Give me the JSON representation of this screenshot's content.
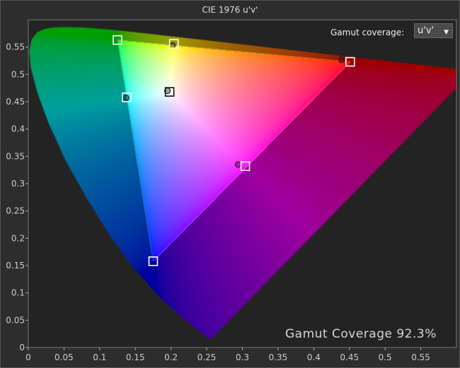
{
  "chart_data": {
    "type": "scatter",
    "title": "CIE 1976 u'v'",
    "xlabel": "",
    "ylabel": "",
    "xlim": [
      0,
      0.6
    ],
    "ylim": [
      0,
      0.6
    ],
    "x_ticks": [
      "0",
      "0.05",
      "0.1",
      "0.15",
      "0.2",
      "0.25",
      "0.3",
      "0.35",
      "0.4",
      "0.45",
      "0.5",
      "0.55"
    ],
    "y_ticks": [
      "0",
      "0.05",
      "0.1",
      "0.15",
      "0.2",
      "0.25",
      "0.3",
      "0.35",
      "0.4",
      "0.45",
      "0.5",
      "0.55"
    ],
    "grid": false,
    "target_gamut": [
      [
        0.451,
        0.523
      ],
      [
        0.125,
        0.563
      ],
      [
        0.175,
        0.158
      ]
    ],
    "targets": [
      {
        "point": "red",
        "u": 0.451,
        "v": 0.523
      },
      {
        "point": "green",
        "u": 0.125,
        "v": 0.563
      },
      {
        "point": "blue",
        "u": 0.175,
        "v": 0.158
      },
      {
        "point": "yellow",
        "u": 0.204,
        "v": 0.556
      },
      {
        "point": "cyan",
        "u": 0.138,
        "v": 0.458
      },
      {
        "point": "magenta",
        "u": 0.304,
        "v": 0.332
      },
      {
        "point": "white",
        "u": 0.198,
        "v": 0.468
      }
    ],
    "measured": [
      {
        "point": "red",
        "u": 0.439,
        "v": 0.527
      },
      {
        "point": "yellow",
        "u": 0.202,
        "v": 0.553
      },
      {
        "point": "cyan",
        "u": 0.137,
        "v": 0.457
      },
      {
        "point": "magenta",
        "u": 0.294,
        "v": 0.335
      },
      {
        "point": "white",
        "u": 0.195,
        "v": 0.47
      }
    ]
  },
  "controls": {
    "gamut_label": "Gamut coverage:",
    "gamut_value": "u'v'"
  },
  "coverage_text": "Gamut Coverage 92.3%",
  "colors": {
    "background": "#2d2d2d",
    "plot_bg": "#232323",
    "axis": "#aaaaaa",
    "marker": "#ffffff"
  }
}
